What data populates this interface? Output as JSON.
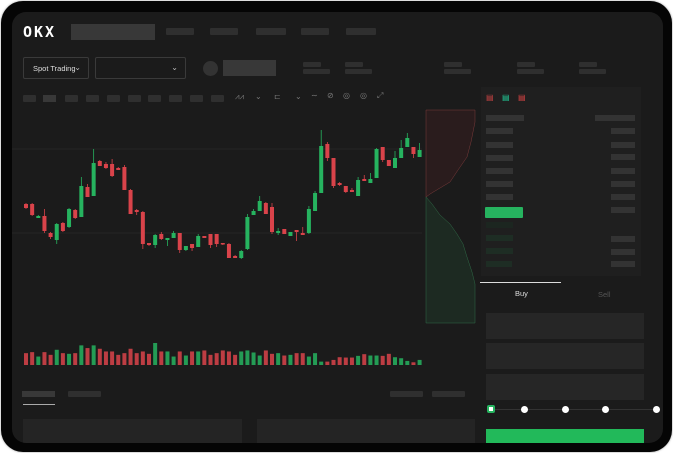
{
  "brand": {
    "logo_text": "OKX"
  },
  "toolbar": {
    "market_select": "Spot Trading",
    "pair_select": "",
    "chevron": "⌄"
  },
  "orderbook": {
    "view_icons": [
      "both-sides-icon",
      "bids-only-icon",
      "asks-only-icon"
    ]
  },
  "trade_panel": {
    "tabs": [
      {
        "label": "Buy",
        "active": true
      },
      {
        "label": "Sell",
        "active": false
      }
    ],
    "slider_level_percent": 0,
    "slider_steps": [
      0,
      25,
      50,
      75,
      100
    ],
    "submit_label": ""
  },
  "colors": {
    "up": "#26b35f",
    "down": "#d9434a",
    "background": "#1b1b1b",
    "accent": "#22b95a"
  },
  "chart_data": {
    "type": "candlestick",
    "title": "",
    "xlabel": "",
    "ylabel": "",
    "ohlc": [
      [
        97,
        98,
        92,
        93
      ],
      [
        97,
        98,
        85,
        86
      ],
      [
        83,
        86,
        83,
        85
      ],
      [
        85,
        92,
        68,
        70
      ],
      [
        68,
        69,
        62,
        64
      ],
      [
        61,
        78,
        57,
        77
      ],
      [
        78,
        79,
        69,
        70
      ],
      [
        74,
        93,
        73,
        92
      ],
      [
        91,
        92,
        82,
        83
      ],
      [
        84,
        124,
        84,
        115
      ],
      [
        114,
        117,
        104,
        104
      ],
      [
        105,
        152,
        105,
        138
      ],
      [
        140,
        141,
        135,
        135
      ],
      [
        137,
        139,
        132,
        133
      ],
      [
        137,
        142,
        124,
        125
      ],
      [
        133,
        134,
        131,
        131
      ],
      [
        134,
        136,
        111,
        111
      ],
      [
        111,
        112,
        87,
        87
      ],
      [
        91,
        92,
        86,
        89
      ],
      [
        89,
        90,
        52,
        57
      ],
      [
        58,
        58,
        55,
        56
      ],
      [
        56,
        67,
        53,
        66
      ],
      [
        67,
        69,
        61,
        62
      ],
      [
        61,
        63,
        55,
        63
      ],
      [
        63,
        70,
        63,
        68
      ],
      [
        68,
        68,
        48,
        51
      ],
      [
        51,
        55,
        50,
        55
      ],
      [
        57,
        57,
        50,
        53
      ],
      [
        54,
        67,
        54,
        65
      ],
      [
        65,
        65,
        63,
        63
      ],
      [
        67,
        67,
        53,
        56
      ],
      [
        67,
        67,
        54,
        57
      ],
      [
        58,
        58,
        56,
        57
      ],
      [
        57,
        58,
        43,
        43
      ],
      [
        45,
        46,
        43,
        43
      ],
      [
        43,
        51,
        42,
        50
      ],
      [
        52,
        87,
        51,
        84
      ],
      [
        86,
        92,
        86,
        90
      ],
      [
        90,
        105,
        90,
        100
      ],
      [
        98,
        99,
        87,
        87
      ],
      [
        94,
        98,
        67,
        69
      ],
      [
        68,
        73,
        66,
        70
      ],
      [
        72,
        72,
        67,
        67
      ],
      [
        65,
        69,
        65,
        69
      ],
      [
        71,
        71,
        60,
        69
      ],
      [
        68,
        74,
        66,
        66
      ],
      [
        68,
        95,
        67,
        92
      ],
      [
        90,
        110,
        90,
        108
      ],
      [
        108,
        171,
        108,
        155
      ],
      [
        157,
        159,
        140,
        143
      ],
      [
        143,
        143,
        113,
        115
      ],
      [
        118,
        119,
        115,
        116
      ],
      [
        115,
        115,
        108,
        109
      ],
      [
        111,
        113,
        109,
        109
      ],
      [
        105,
        124,
        105,
        121
      ],
      [
        122,
        126,
        120,
        120
      ],
      [
        118,
        128,
        118,
        122
      ],
      [
        123,
        153,
        123,
        152
      ],
      [
        154,
        154,
        139,
        141
      ],
      [
        141,
        141,
        135,
        135
      ],
      [
        133,
        150,
        133,
        143
      ],
      [
        143,
        161,
        143,
        153
      ],
      [
        154,
        168,
        154,
        163
      ],
      [
        154,
        154,
        143,
        147
      ],
      [
        144,
        158,
        144,
        151
      ]
    ],
    "volume": [
      35,
      38,
      25,
      38,
      30,
      45,
      35,
      33,
      35,
      58,
      50,
      58,
      48,
      40,
      40,
      30,
      35,
      48,
      35,
      40,
      33,
      65,
      40,
      40,
      25,
      40,
      28,
      40,
      40,
      43,
      30,
      35,
      43,
      40,
      30,
      40,
      43,
      37,
      28,
      43,
      33,
      35,
      28,
      30,
      35,
      35,
      25,
      35,
      10,
      10,
      15,
      23,
      22,
      22,
      27,
      32,
      28,
      28,
      27,
      33,
      23,
      20,
      12,
      8,
      15
    ],
    "grid": true
  }
}
